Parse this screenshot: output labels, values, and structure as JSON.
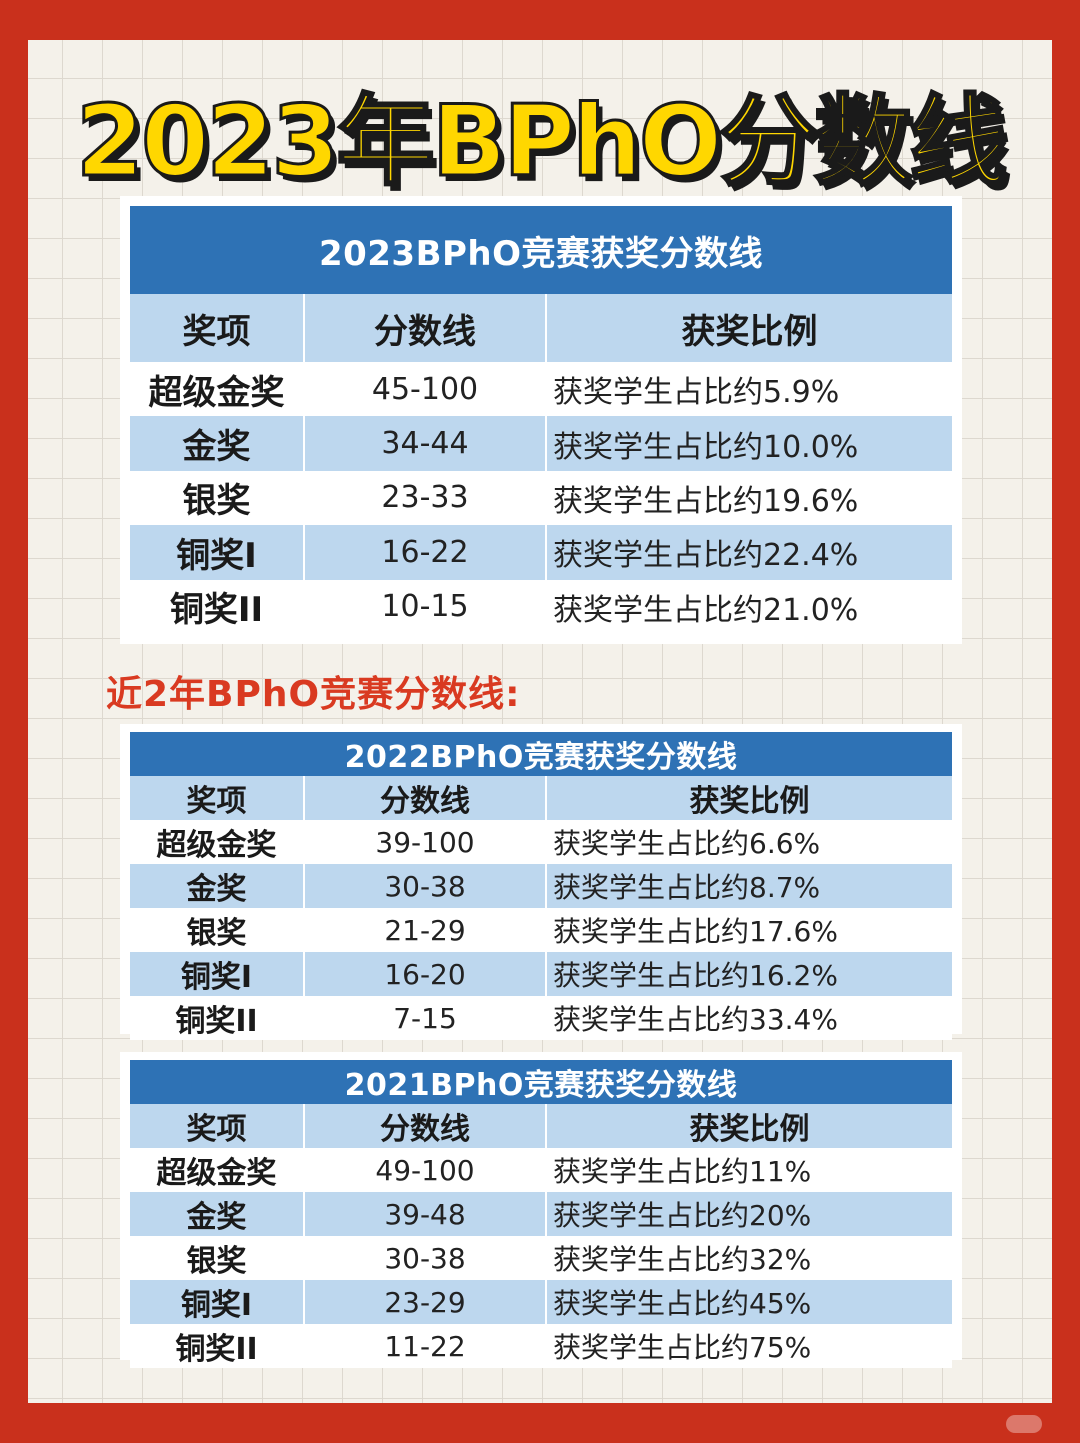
{
  "title": "2023年BPhO分数线",
  "subhead": "近2年BPhO竞赛分数线:",
  "colors": {
    "background": "#c9301c",
    "title": "#ffd700",
    "table_header": "#2e72b5",
    "table_stripe": "#bdd7ee",
    "subhead": "#d93a21"
  },
  "tables": [
    {
      "caption": "2023BPhO竞赛获奖分数线",
      "headers": [
        "奖项",
        "分数线",
        "获奖比例"
      ],
      "rows": [
        {
          "award": "超级金奖",
          "score": "45-100",
          "ratio": "获奖学生占比约5.9%"
        },
        {
          "award": "金奖",
          "score": "34-44",
          "ratio": "获奖学生占比约10.0%"
        },
        {
          "award": "银奖",
          "score": "23-33",
          "ratio": "获奖学生占比约19.6%"
        },
        {
          "award": "铜奖I",
          "score": "16-22",
          "ratio": "获奖学生占比约22.4%"
        },
        {
          "award": "铜奖II",
          "score": "10-15",
          "ratio": "获奖学生占比约21.0%"
        }
      ]
    },
    {
      "caption": "2022BPhO竞赛获奖分数线",
      "headers": [
        "奖项",
        "分数线",
        "获奖比例"
      ],
      "rows": [
        {
          "award": "超级金奖",
          "score": "39-100",
          "ratio": "获奖学生占比约6.6%"
        },
        {
          "award": "金奖",
          "score": "30-38",
          "ratio": "获奖学生占比约8.7%"
        },
        {
          "award": "银奖",
          "score": "21-29",
          "ratio": "获奖学生占比约17.6%"
        },
        {
          "award": "铜奖I",
          "score": "16-20",
          "ratio": "获奖学生占比约16.2%"
        },
        {
          "award": "铜奖II",
          "score": "7-15",
          "ratio": "获奖学生占比约33.4%"
        }
      ]
    },
    {
      "caption": "2021BPhO竞赛获奖分数线",
      "headers": [
        "奖项",
        "分数线",
        "获奖比例"
      ],
      "rows": [
        {
          "award": "超级金奖",
          "score": "49-100",
          "ratio": "获奖学生占比约11%"
        },
        {
          "award": "金奖",
          "score": "39-48",
          "ratio": "获奖学生占比约20%"
        },
        {
          "award": "银奖",
          "score": "30-38",
          "ratio": "获奖学生占比约32%"
        },
        {
          "award": "铜奖I",
          "score": "23-29",
          "ratio": "获奖学生占比约45%"
        },
        {
          "award": "铜奖II",
          "score": "11-22",
          "ratio": "获奖学生占比约75%"
        }
      ]
    }
  ]
}
